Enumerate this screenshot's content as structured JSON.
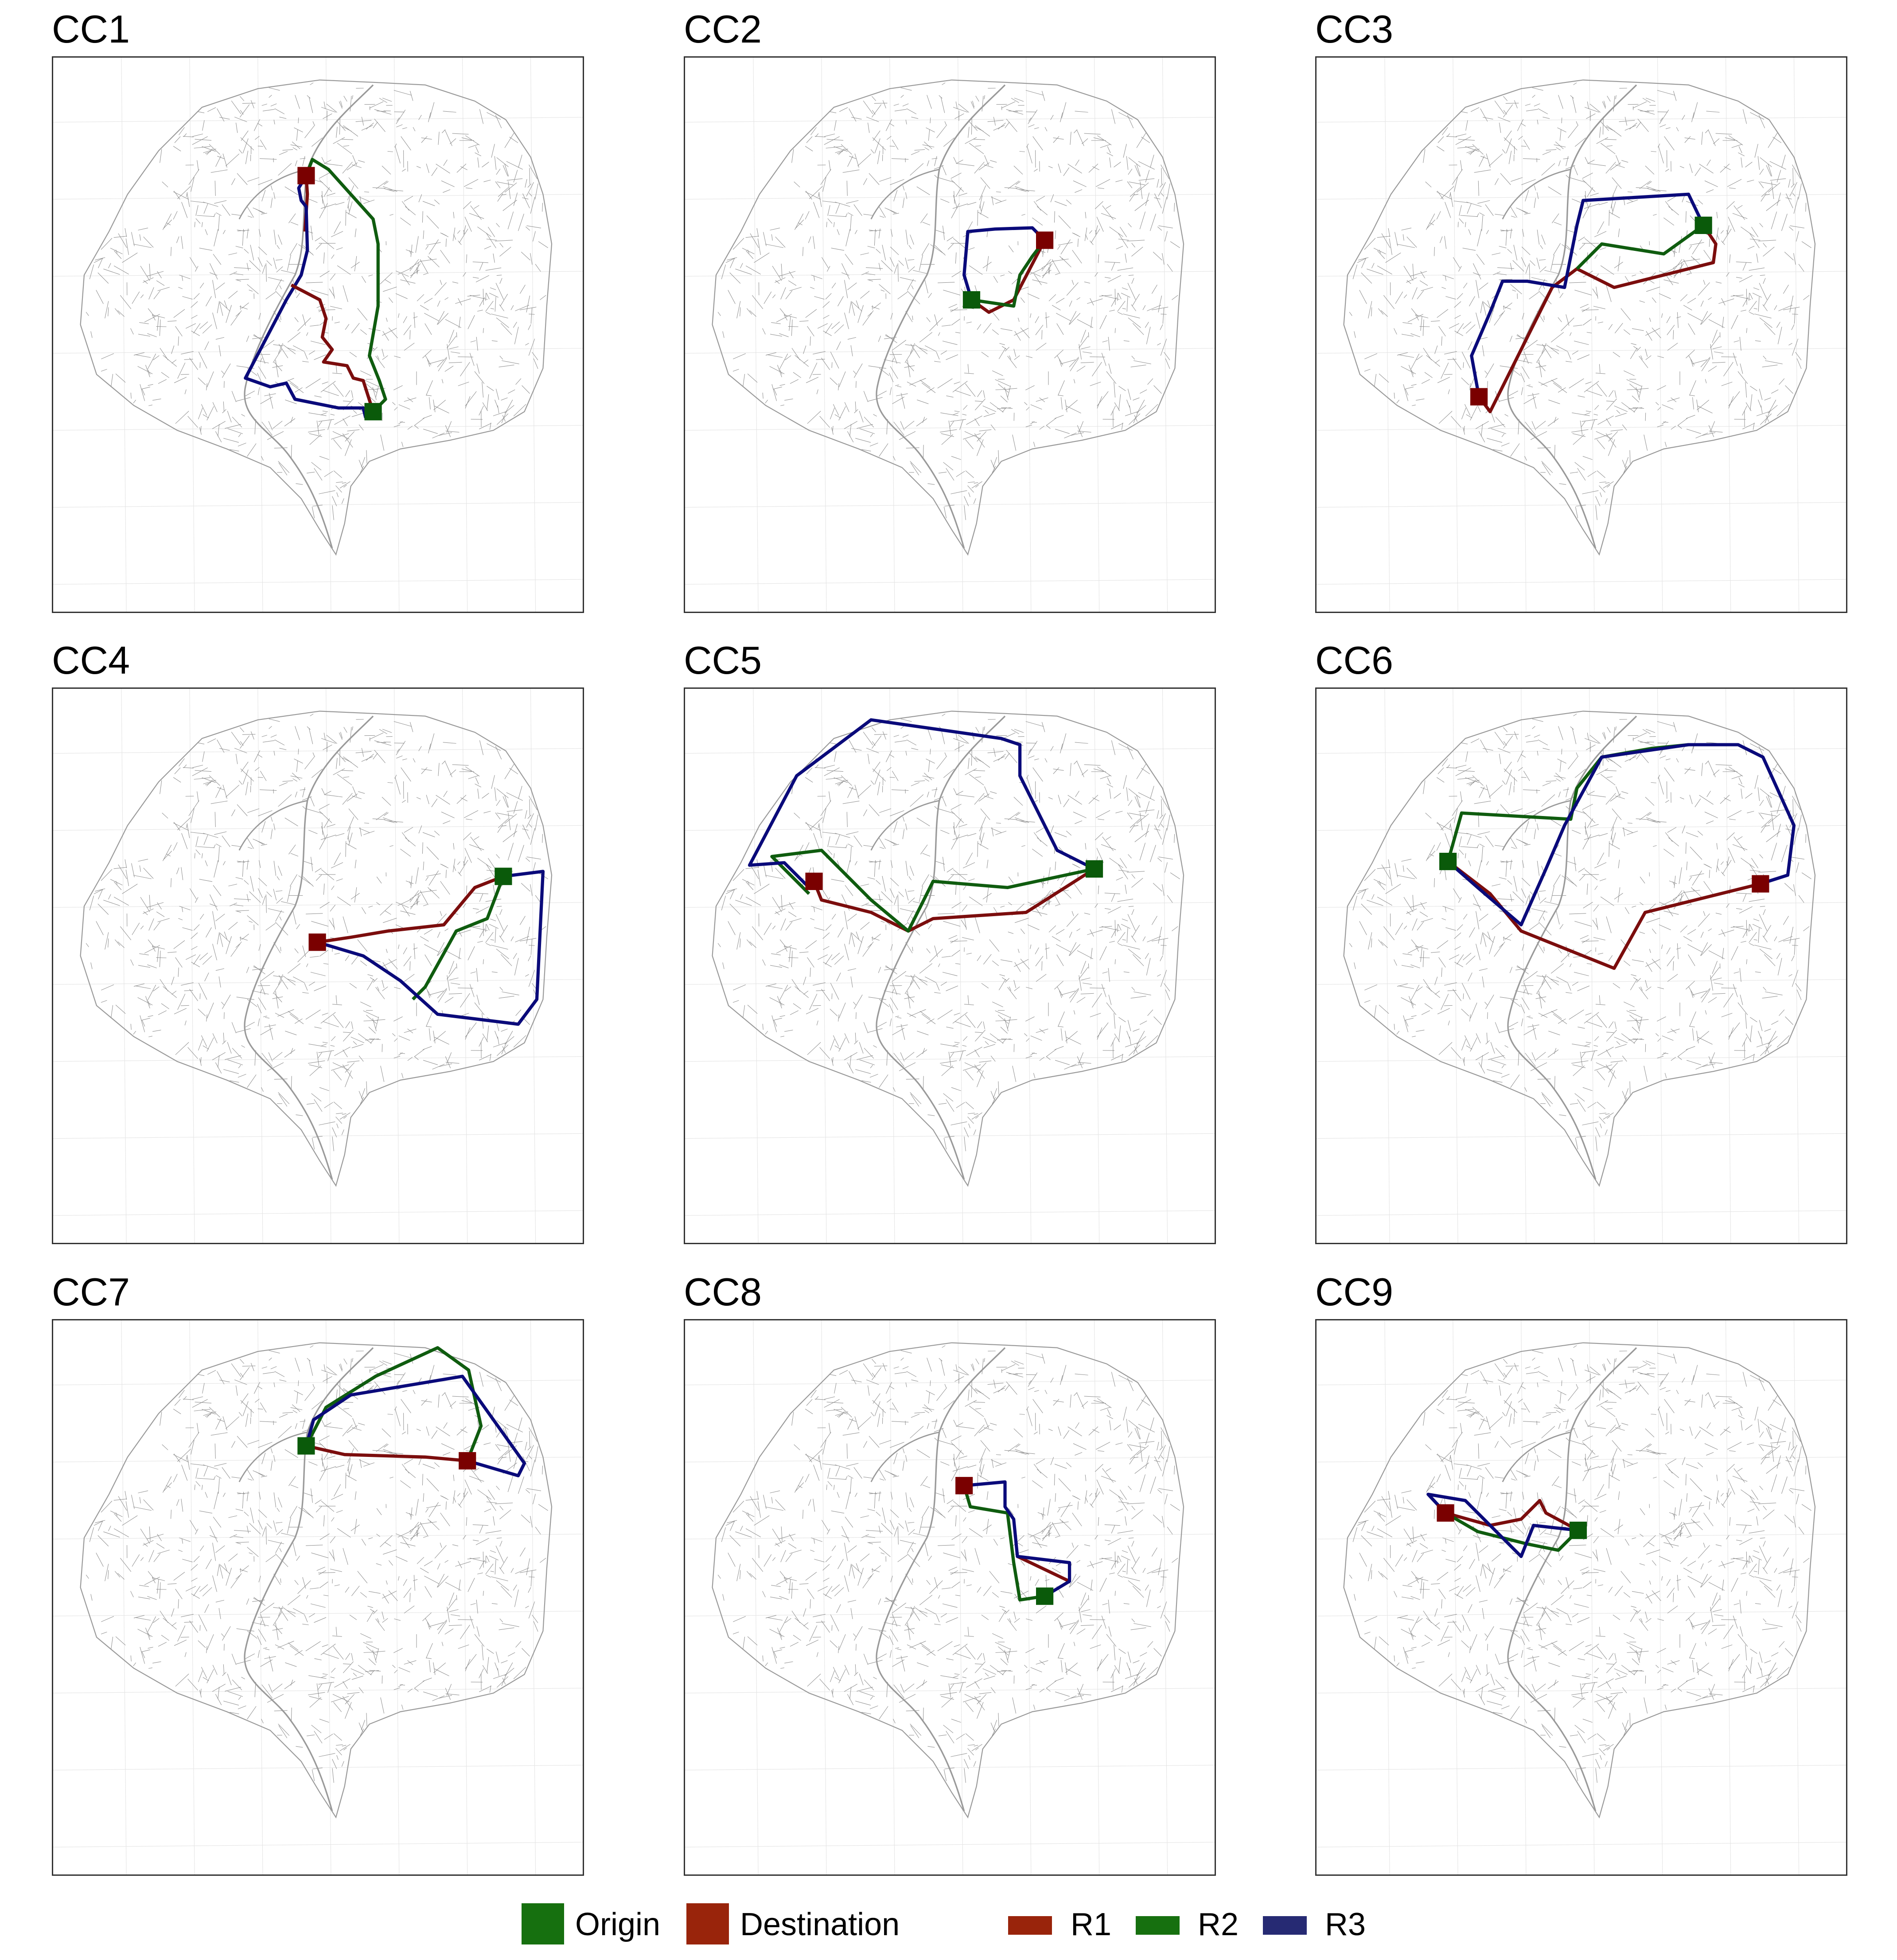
{
  "panels": [
    {
      "title": "CC1"
    },
    {
      "title": "CC2"
    },
    {
      "title": "CC3"
    },
    {
      "title": "CC4"
    },
    {
      "title": "CC5"
    },
    {
      "title": "CC6"
    },
    {
      "title": "CC7"
    },
    {
      "title": "CC8"
    },
    {
      "title": "CC9"
    }
  ],
  "legend": {
    "origin": {
      "label": "Origin",
      "color": "#16700f"
    },
    "destination": {
      "label": "Destination",
      "color": "#99240b"
    },
    "routes": [
      {
        "label": "R1",
        "color": "#99240b"
      },
      {
        "label": "R2",
        "color": "#16700f"
      },
      {
        "label": "R3",
        "color": "#262a73"
      }
    ]
  },
  "colors": {
    "r1_line": "#7b0d0d",
    "r2_line": "#0f5c0f",
    "r3_line": "#0a0a7a",
    "origin_marker": "#0a5a0a",
    "destination_marker": "#7a0000",
    "street": "#8a8a8a"
  }
}
